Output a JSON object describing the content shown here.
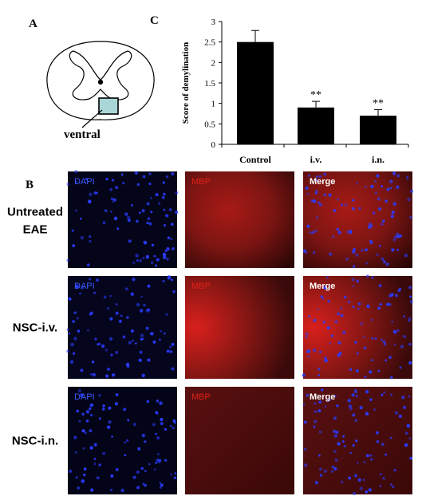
{
  "panel_a": {
    "label": "A",
    "region_label": "ventral"
  },
  "chart_data": {
    "type": "bar",
    "label": "C",
    "ylabel": "Score of demylination",
    "categories": [
      "Control",
      "i.v.",
      "i.n."
    ],
    "values": [
      2.5,
      0.9,
      0.7
    ],
    "errors": [
      0.28,
      0.15,
      0.15
    ],
    "annotations": [
      null,
      "**",
      "**"
    ],
    "color": "#000000",
    "ylim": [
      0,
      3
    ],
    "yticks": [
      0,
      0.5,
      1,
      1.5,
      2,
      2.5,
      3
    ]
  },
  "panel_b": {
    "label": "B",
    "columns": [
      "DAPI",
      "MBP",
      "Merge"
    ],
    "rows": [
      [
        "Untreated",
        "EAE"
      ],
      [
        "NSC-i.v."
      ],
      [
        "NSC-i.n."
      ]
    ]
  }
}
